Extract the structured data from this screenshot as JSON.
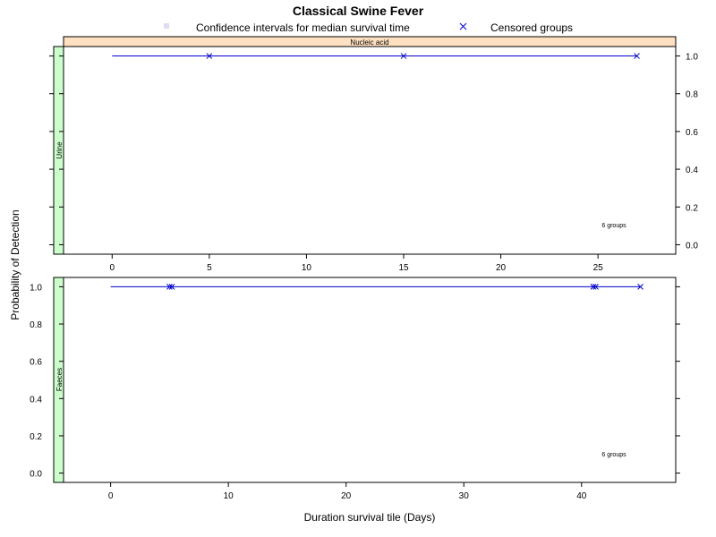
{
  "title": "Classical Swine Fever",
  "legend": {
    "ci_label": "Confidence intervals for median survival time",
    "censored_label": "Censored groups",
    "ci_color": "#e0dcf4",
    "censored_color": "#0000cc"
  },
  "colors": {
    "line": "#0000cc",
    "strip_top": "#ffe0c0",
    "strip_side": "#ccffcc"
  },
  "axes": {
    "xlabel": "Duration survival tile (Days)",
    "ylabel": "Probability of Detection"
  },
  "chart_data": [
    {
      "type": "line",
      "panel_strip": "Nucleic acid",
      "group_strip": "Urine",
      "note": "6 groups",
      "xlim": [
        -2.5,
        29
      ],
      "ylim": [
        -0.05,
        1.05
      ],
      "x_ticks": [
        0,
        5,
        10,
        15,
        20,
        25
      ],
      "y_ticks": [
        0.0,
        0.2,
        0.4,
        0.6,
        0.8,
        1.0
      ],
      "y_tick_labels": [
        "0.0",
        "0.2",
        "0.4",
        "0.6",
        "0.8",
        "1.0"
      ],
      "y_axis_side": "right",
      "series": [
        {
          "x": [
            0,
            27
          ],
          "y": [
            1.0,
            1.0
          ]
        }
      ],
      "censored": {
        "x": [
          5,
          15,
          27
        ],
        "y": [
          1.0,
          1.0,
          1.0
        ]
      }
    },
    {
      "type": "line",
      "group_strip": "Faeces",
      "note": "6 groups",
      "xlim": [
        -4,
        48
      ],
      "ylim": [
        -0.05,
        1.05
      ],
      "x_ticks": [
        0,
        10,
        20,
        30,
        40
      ],
      "y_ticks": [
        0.0,
        0.2,
        0.4,
        0.6,
        0.8,
        1.0
      ],
      "y_tick_labels": [
        "0.0",
        "0.2",
        "0.4",
        "0.6",
        "0.8",
        "1.0"
      ],
      "y_axis_side": "left",
      "series": [
        {
          "x": [
            0,
            45
          ],
          "y": [
            1.0,
            1.0
          ]
        }
      ],
      "censored": {
        "x": [
          5,
          5.2,
          41,
          41.2,
          45
        ],
        "y": [
          1.0,
          1.0,
          1.0,
          1.0,
          1.0
        ]
      }
    }
  ]
}
